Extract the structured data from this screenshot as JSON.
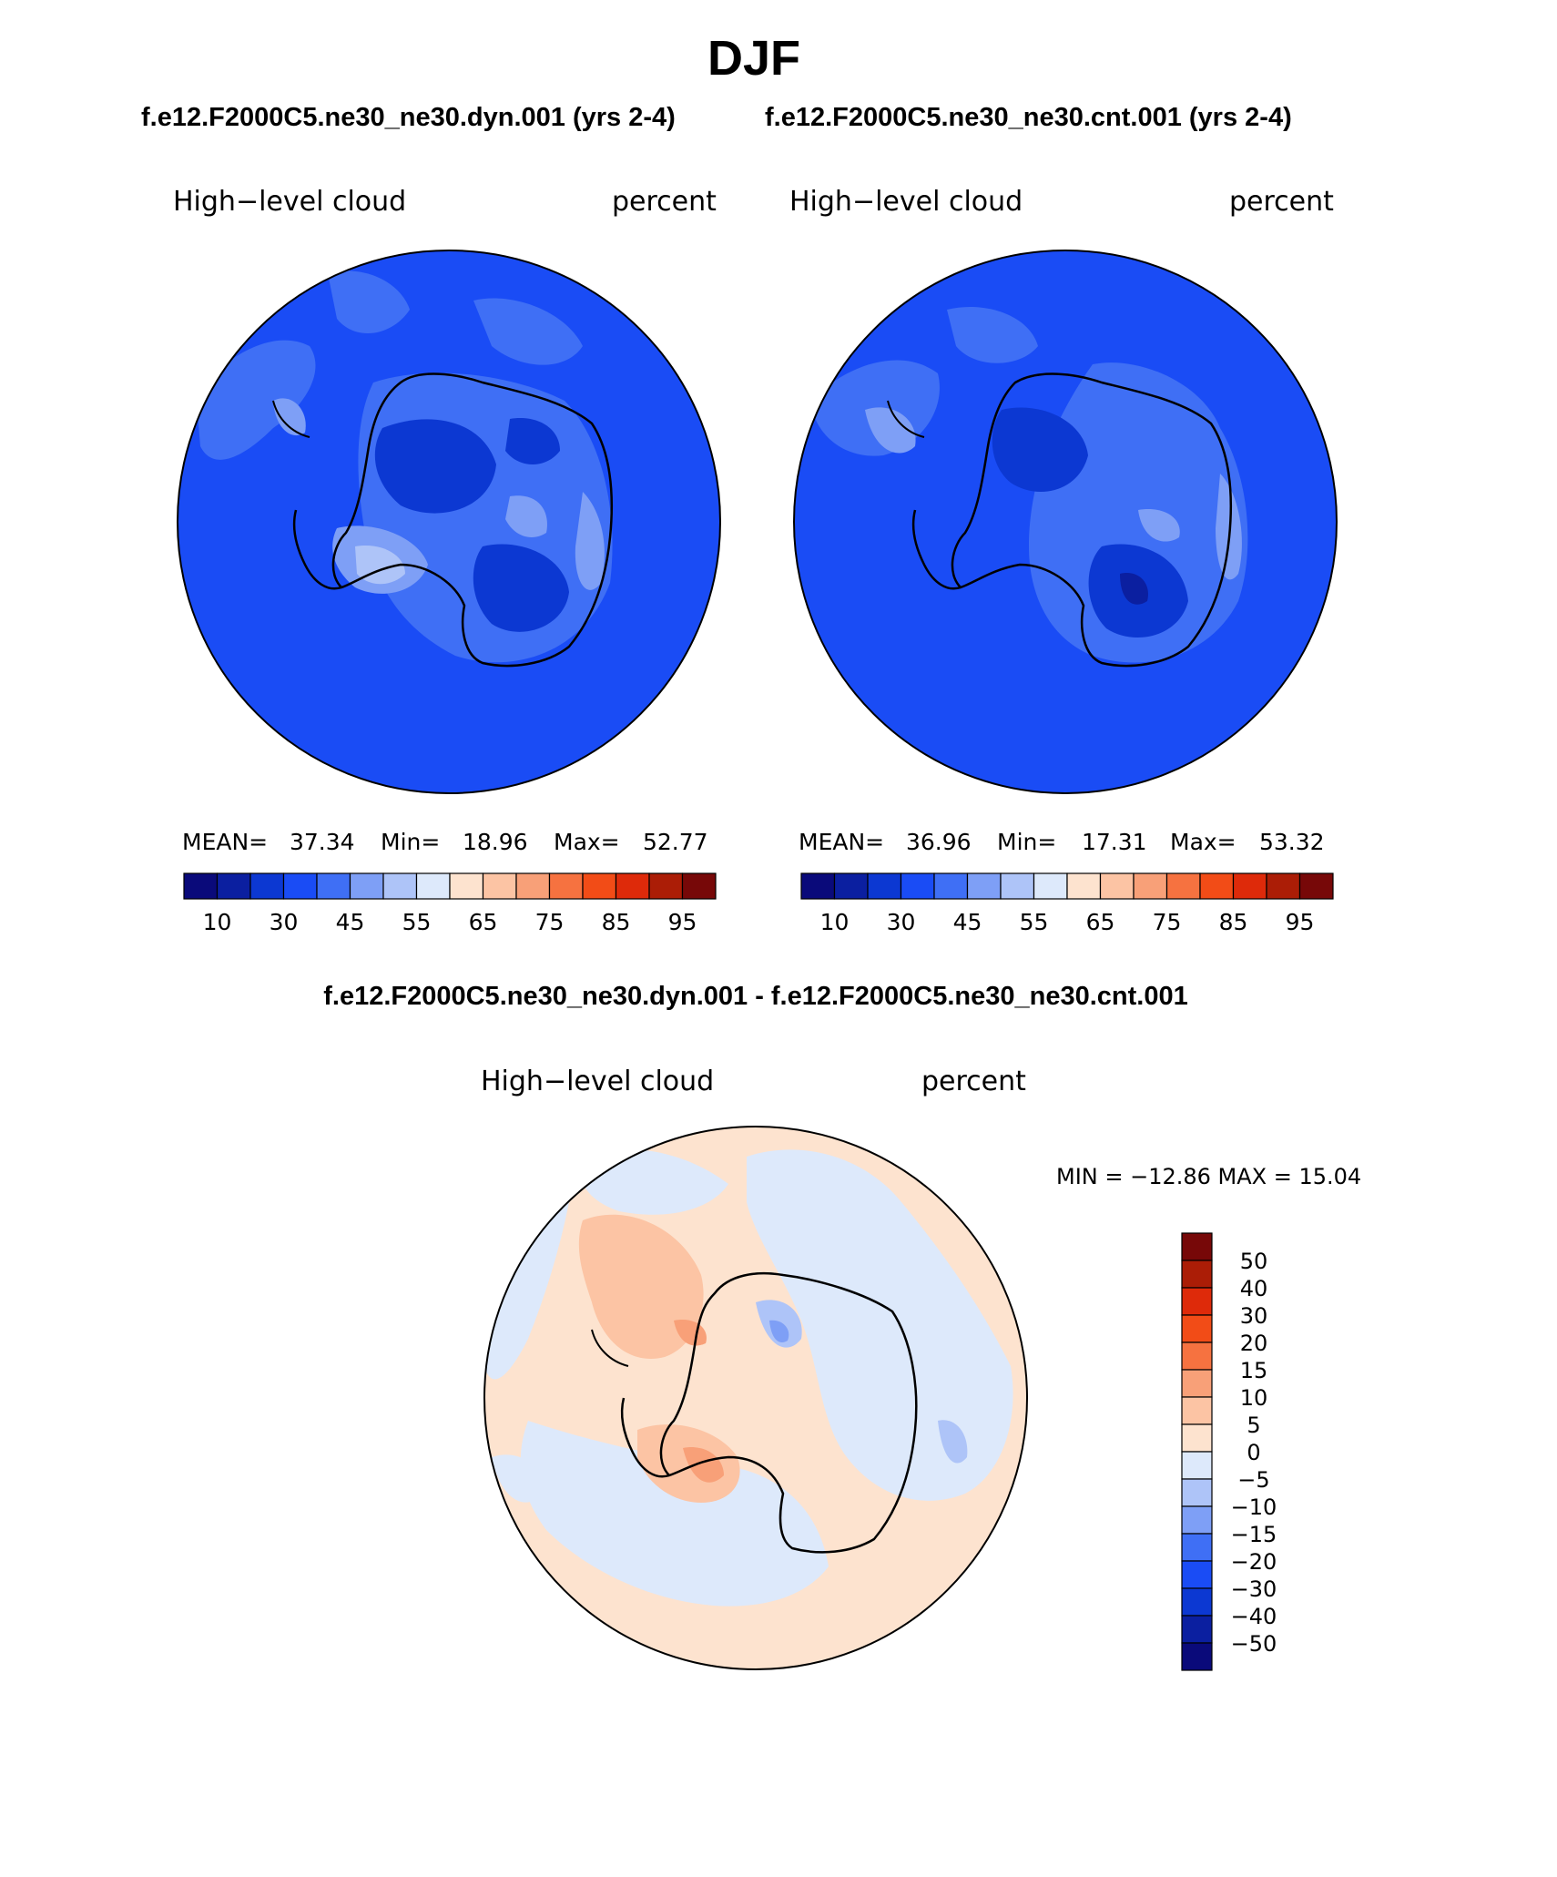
{
  "season": "DJF",
  "case1": "f.e12.F2000C5.ne30_ne30.dyn.001 (yrs 2-4)",
  "case2": "f.e12.F2000C5.ne30_ne30.cnt.001 (yrs 2-4)",
  "diff_title": "f.e12.F2000C5.ne30_ne30.dyn.001 - f.e12.F2000C5.ne30_ne30.cnt.001",
  "panels": [
    {
      "variable": "High−level cloud",
      "units": "percent",
      "mean_label": "MEAN=",
      "mean": "37.34",
      "min_label": "Min=",
      "min": "18.96",
      "max_label": "Max=",
      "max": "52.77"
    },
    {
      "variable": "High−level cloud",
      "units": "percent",
      "mean_label": "MEAN=",
      "mean": "36.96",
      "min_label": "Min=",
      "min": "17.31",
      "max_label": "Max=",
      "max": "53.32"
    }
  ],
  "diff_panel": {
    "variable": "High−level cloud",
    "units": "percent",
    "minmax": "MIN = −12.86  MAX =   15.04"
  },
  "colorbar": {
    "colors": [
      "#0a0a7a",
      "#0b1fa0",
      "#0c38d2",
      "#1a4cf5",
      "#3f6ff5",
      "#7e9ff6",
      "#aec4f8",
      "#dde9fb",
      "#fde3cf",
      "#fcc4a4",
      "#f8a078",
      "#f67240",
      "#f24c17",
      "#de2a0a",
      "#ab1d06",
      "#770808"
    ],
    "labels": [
      "10",
      "30",
      "45",
      "55",
      "65",
      "75",
      "85",
      "95"
    ]
  },
  "diff_colorbar": {
    "colors": [
      "#770808",
      "#ab1d06",
      "#de2a0a",
      "#f24c17",
      "#f67240",
      "#f8a078",
      "#fcc4a4",
      "#fde3cf",
      "#dde9fb",
      "#aec4f8",
      "#7e9ff6",
      "#3f6ff5",
      "#1a4cf5",
      "#0c38d2",
      "#0b1fa0",
      "#0a0a7a"
    ],
    "labels": [
      "50",
      "40",
      "30",
      "20",
      "15",
      "10",
      "5",
      "0",
      "−5",
      "−10",
      "−15",
      "−20",
      "−30",
      "−40",
      "−50"
    ]
  }
}
